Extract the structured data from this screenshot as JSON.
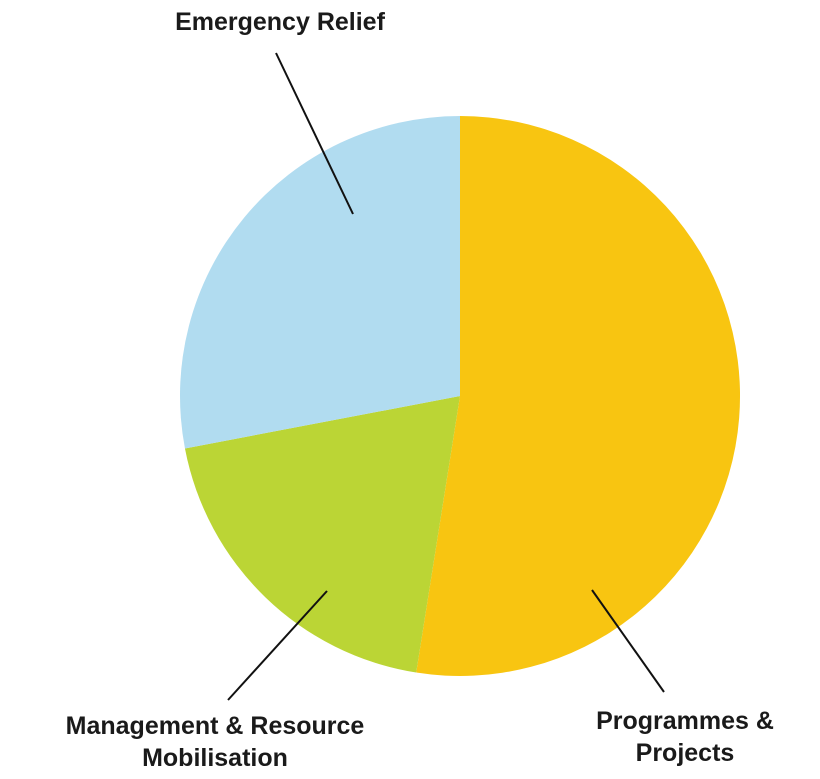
{
  "chart_data": {
    "type": "pie",
    "title": "",
    "start_angle_deg": 0,
    "direction": "clockwise",
    "slices": [
      {
        "key": "programmes",
        "label_lines": [
          "Programmes &",
          "Projects"
        ],
        "label": "Programmes & Projects",
        "value": 52.5,
        "color": "#F8C511"
      },
      {
        "key": "management",
        "label_lines": [
          "Management & Resource",
          "Mobilisation"
        ],
        "label": "Management & Resource Mobilisation",
        "value": 19.5,
        "color": "#BBD535"
      },
      {
        "key": "emergency",
        "label_lines": [
          "Emergency Relief"
        ],
        "label": "Emergency Relief",
        "value": 28.0,
        "color": "#B1DCF0"
      }
    ]
  }
}
